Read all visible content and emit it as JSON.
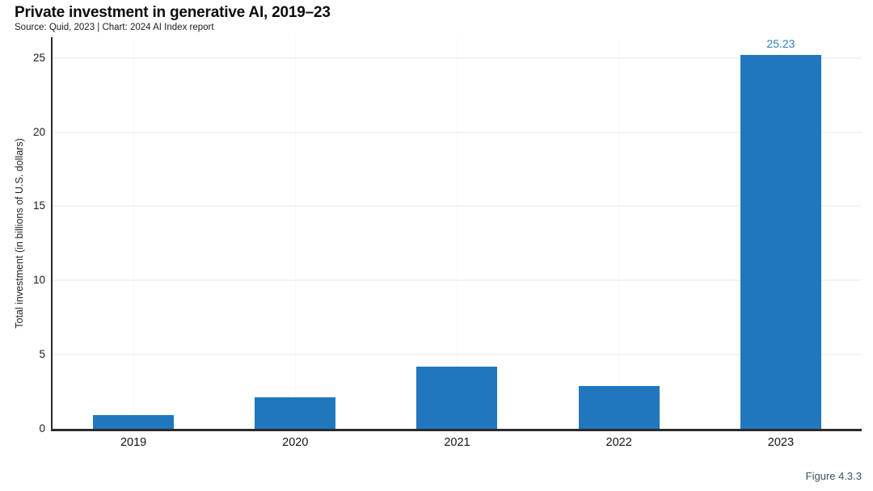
{
  "header": {
    "title": "Private investment in generative AI, 2019–23",
    "source_line": "Source: Quid, 2023 | Chart: 2024 AI Index report"
  },
  "chart_data": {
    "type": "bar",
    "title": "Private investment in generative AI, 2019–23",
    "categories": [
      "2019",
      "2020",
      "2021",
      "2022",
      "2023"
    ],
    "values": [
      0.9,
      2.1,
      4.2,
      2.9,
      25.23
    ],
    "value_labels": [
      "",
      "",
      "",
      "",
      "25.23"
    ],
    "xlabel": "",
    "ylabel": "Total investment (in billions of U.S. dollars)",
    "yticks": [
      0,
      5,
      10,
      15,
      20,
      25
    ],
    "ylim": [
      0,
      26.4
    ],
    "grid": "faint horizontal and vertical gridlines",
    "legend": "none",
    "bar_color": "#2177bd",
    "value_label_color": "#2e7ebf"
  },
  "footer": {
    "figure_label": "Figure 4.3.3"
  },
  "colors": {
    "background": "#ffffff",
    "axis": "#2b2b2b",
    "title_text": "#0d0d0d",
    "tick_text": "#1b1b1b",
    "grid": "#f2f4f6"
  }
}
